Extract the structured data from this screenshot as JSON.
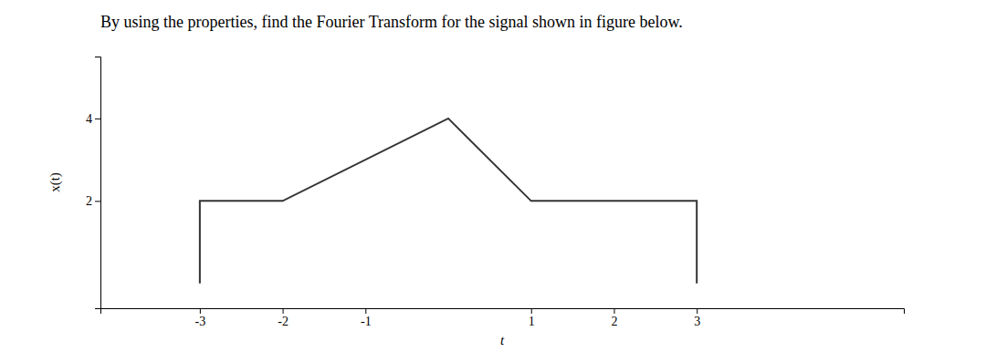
{
  "chart_data": {
    "type": "line",
    "title": "By using the properties, find the Fourier Transform for the signal shown in figure below.",
    "x": [
      -3,
      -3,
      -2,
      0,
      1,
      3,
      3
    ],
    "values": [
      0,
      2,
      2,
      4,
      2,
      2,
      0
    ],
    "color": "#333333",
    "xlabel": "t",
    "ylabel": "x(t)",
    "xlim": [
      -4.2,
      5.5
    ],
    "ylim": [
      -0.6,
      5.5
    ],
    "xticks": [
      -3,
      -2,
      -1,
      1,
      2,
      3
    ],
    "yticks": [
      2,
      4
    ],
    "grid": false
  }
}
